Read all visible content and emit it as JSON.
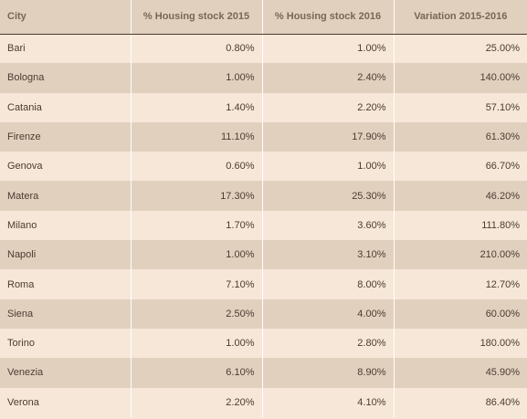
{
  "table": {
    "headers": [
      "City",
      "% Housing stock 2015",
      "% Housing stock 2016",
      "Variation 2015-2016"
    ],
    "rows": [
      [
        "Bari",
        "0.80%",
        "1.00%",
        "25.00%"
      ],
      [
        "Bologna",
        "1.00%",
        "2.40%",
        "140.00%"
      ],
      [
        "Catania",
        "1.40%",
        "2.20%",
        "57.10%"
      ],
      [
        "Firenze",
        "11.10%",
        "17.90%",
        "61.30%"
      ],
      [
        "Genova",
        "0.60%",
        "1.00%",
        "66.70%"
      ],
      [
        "Matera",
        "17.30%",
        "25.30%",
        "46.20%"
      ],
      [
        "Milano",
        "1.70%",
        "3.60%",
        "111.80%"
      ],
      [
        "Napoli",
        "1.00%",
        "3.10%",
        "210.00%"
      ],
      [
        "Roma",
        "7.10%",
        "8.00%",
        "12.70%"
      ],
      [
        "Siena",
        "2.50%",
        "4.00%",
        "60.00%"
      ],
      [
        "Torino",
        "1.00%",
        "2.80%",
        "180.00%"
      ],
      [
        "Venezia",
        "6.10%",
        "8.90%",
        "45.90%"
      ],
      [
        "Verona",
        "2.20%",
        "4.10%",
        "86.40%"
      ]
    ]
  }
}
